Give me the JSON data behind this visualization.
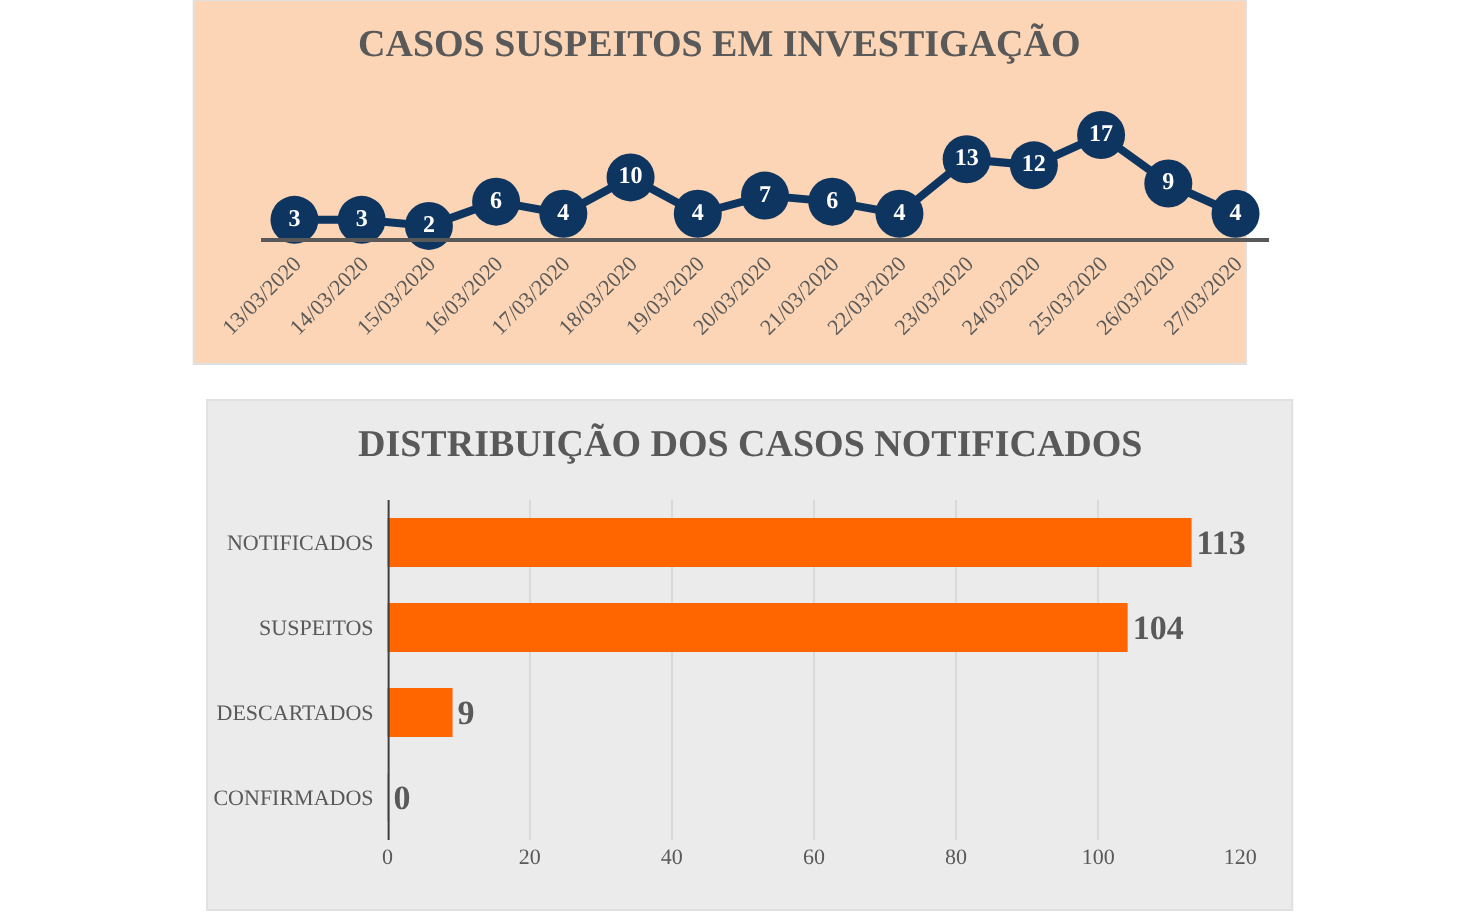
{
  "chart_data": [
    {
      "type": "line",
      "title": "CASOS SUSPEITOS EM INVESTIGAÇÃO",
      "categories": [
        "13/03/2020",
        "14/03/2020",
        "15/03/2020",
        "16/03/2020",
        "17/03/2020",
        "18/03/2020",
        "19/03/2020",
        "20/03/2020",
        "21/03/2020",
        "22/03/2020",
        "23/03/2020",
        "24/03/2020",
        "25/03/2020",
        "26/03/2020",
        "27/03/2020"
      ],
      "values": [
        3,
        3,
        2,
        6,
        4,
        10,
        4,
        7,
        6,
        4,
        13,
        12,
        17,
        9,
        4
      ],
      "color": "#0d3560",
      "marker": "circle",
      "data_labels": true,
      "grid": false,
      "tick_labels": "x",
      "legend": false
    },
    {
      "type": "bar",
      "orientation": "horizontal",
      "title": "DISTRIBUIÇÃO DOS CASOS NOTIFICADOS",
      "categories": [
        "NOTIFICADOS",
        "SUSPEITOS",
        "DESCARTADOS",
        "CONFIRMADOS"
      ],
      "values": [
        113,
        104,
        9,
        0
      ],
      "color": "#ff6600",
      "data_labels": true,
      "xlim": [
        0,
        120
      ],
      "xticks": [
        0,
        20,
        40,
        60,
        80,
        100,
        120
      ],
      "grid": "x",
      "legend": false
    }
  ]
}
